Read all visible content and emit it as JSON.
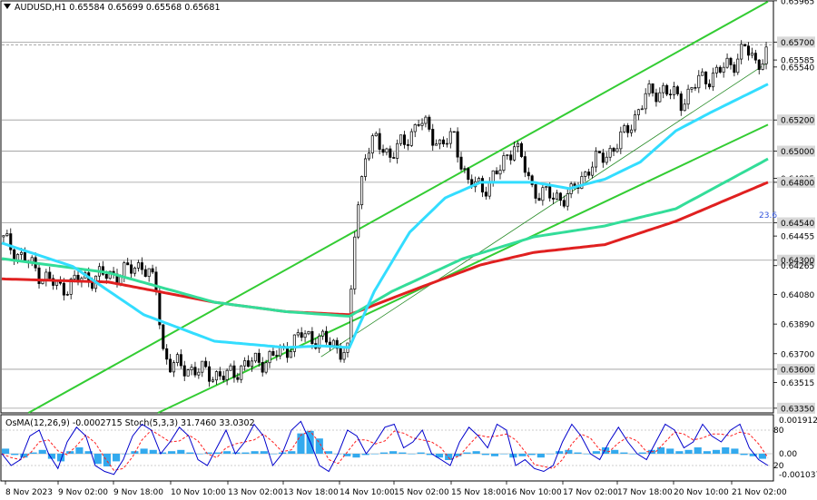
{
  "header": {
    "symbol_title": "AUDUSD,H1  0.65584 0.65699 0.65568 0.65681",
    "current_price": "0.65681"
  },
  "colors": {
    "background": "#ffffff",
    "candle": "#000000",
    "ema_fast": "#33ddff",
    "ema_mid": "#33dd99",
    "ema_slow": "#e02020",
    "channel": "#33cc33",
    "level_line": "#999999",
    "osma_hist": "#33aaee",
    "stoch_main": "#0000cc",
    "stoch_signal": "#ff2020",
    "fib_label": "#3355dd"
  },
  "chart_data": {
    "type": "candlestick",
    "symbol": "AUDUSD",
    "timeframe": "H1",
    "ohlc_last": {
      "open": 0.65584,
      "high": 0.65699,
      "low": 0.65568,
      "close": 0.65681
    },
    "ylim": [
      0.6332,
      0.6597
    ],
    "y_ticks": [
      "0.65965",
      "0.65700",
      "0.65585",
      "0.65540",
      "0.65200",
      "0.65000",
      "0.64825",
      "0.64800",
      "0.64540",
      "0.64455",
      "0.64300",
      "0.64265",
      "0.64080",
      "0.63890",
      "0.63700",
      "0.63600",
      "0.63515",
      "0.63350"
    ],
    "highlighted_levels": [
      "0.65700",
      "0.65200",
      "0.65000",
      "0.64800",
      "0.64540",
      "0.64300",
      "0.63600",
      "0.63350"
    ],
    "x_tick_labels": [
      "8 Nov 2023",
      "9 Nov 02:00",
      "9 Nov 18:00",
      "10 Nov 10:00",
      "13 Nov 02:00",
      "13 Nov 18:00",
      "14 Nov 10:00",
      "15 Nov 02:00",
      "15 Nov 18:00",
      "16 Nov 10:00",
      "17 Nov 02:00",
      "17 Nov 18:00",
      "20 Nov 10:00",
      "21 Nov 02:00"
    ],
    "fib_label": "23.6",
    "close_path": [
      [
        0,
        0.6445
      ],
      [
        12,
        0.6432
      ],
      [
        24,
        0.642
      ],
      [
        34,
        0.6412
      ],
      [
        46,
        0.6418
      ],
      [
        58,
        0.642
      ],
      [
        70,
        0.6422
      ],
      [
        80,
        0.6428
      ],
      [
        88,
        0.6412
      ],
      [
        92,
        0.6372
      ],
      [
        96,
        0.6363
      ],
      [
        108,
        0.636
      ],
      [
        120,
        0.6357
      ],
      [
        128,
        0.6355
      ],
      [
        138,
        0.6363
      ],
      [
        150,
        0.6366
      ],
      [
        160,
        0.6372
      ],
      [
        170,
        0.6382
      ],
      [
        178,
        0.638
      ],
      [
        188,
        0.6376
      ],
      [
        196,
        0.637
      ],
      [
        200,
        0.6448
      ],
      [
        206,
        0.65
      ],
      [
        212,
        0.6506
      ],
      [
        220,
        0.6498
      ],
      [
        228,
        0.6505
      ],
      [
        236,
        0.652
      ],
      [
        242,
        0.6512
      ],
      [
        248,
        0.6505
      ],
      [
        256,
        0.6508
      ],
      [
        264,
        0.648
      ],
      [
        272,
        0.6476
      ],
      [
        282,
        0.6488
      ],
      [
        290,
        0.6506
      ],
      [
        300,
        0.6476
      ],
      [
        312,
        0.647
      ],
      [
        322,
        0.6472
      ],
      [
        332,
        0.649
      ],
      [
        342,
        0.6498
      ],
      [
        352,
        0.651
      ],
      [
        364,
        0.6535
      ],
      [
        374,
        0.654
      ],
      [
        384,
        0.6532
      ],
      [
        394,
        0.6545
      ],
      [
        404,
        0.655
      ],
      [
        414,
        0.6558
      ],
      [
        420,
        0.6566
      ],
      [
        426,
        0.6557
      ],
      [
        432,
        0.6562
      ]
    ],
    "ema_fast_path": [
      [
        0,
        0.6441
      ],
      [
        40,
        0.6426
      ],
      [
        80,
        0.6395
      ],
      [
        120,
        0.6378
      ],
      [
        160,
        0.6374
      ],
      [
        180,
        0.6375
      ],
      [
        196,
        0.6374
      ],
      [
        210,
        0.641
      ],
      [
        230,
        0.6448
      ],
      [
        250,
        0.647
      ],
      [
        270,
        0.648
      ],
      [
        300,
        0.648
      ],
      [
        320,
        0.6476
      ],
      [
        340,
        0.6482
      ],
      [
        360,
        0.6493
      ],
      [
        380,
        0.6513
      ],
      [
        400,
        0.6525
      ],
      [
        432,
        0.6543
      ]
    ],
    "ema_mid_path": [
      [
        0,
        0.6431
      ],
      [
        60,
        0.6422
      ],
      [
        120,
        0.6403
      ],
      [
        160,
        0.6397
      ],
      [
        196,
        0.6394
      ],
      [
        220,
        0.641
      ],
      [
        260,
        0.6431
      ],
      [
        300,
        0.6445
      ],
      [
        340,
        0.6452
      ],
      [
        380,
        0.6463
      ],
      [
        432,
        0.6495
      ]
    ],
    "ema_slow_path": [
      [
        0,
        0.6418
      ],
      [
        60,
        0.6416
      ],
      [
        120,
        0.6403
      ],
      [
        160,
        0.6397
      ],
      [
        196,
        0.6395
      ],
      [
        230,
        0.641
      ],
      [
        270,
        0.6427
      ],
      [
        300,
        0.6435
      ],
      [
        340,
        0.644
      ],
      [
        380,
        0.6455
      ],
      [
        432,
        0.648
      ]
    ],
    "channel_lines": [
      {
        "name": "upper",
        "from": [
          15,
          0.6332
        ],
        "to": [
          432,
          0.6596
        ]
      },
      {
        "name": "middle",
        "from": [
          180,
          0.6368
        ],
        "to": [
          432,
          0.6557
        ]
      },
      {
        "name": "lower",
        "from": [
          88,
          0.6332
        ],
        "to": [
          432,
          0.6517
        ]
      }
    ],
    "indicators": {
      "title": "OsMA(12,26,9) -0.0002715  Stoch(5,3,3) 31.7460 33.0302",
      "osma_ticks": [
        "0.0019127",
        "0.00",
        "-0.001037"
      ],
      "stoch_ticks": [
        "80",
        "20"
      ],
      "stoch_main_values": [
        40,
        20,
        30,
        70,
        80,
        40,
        15,
        60,
        85,
        70,
        20,
        10,
        5,
        30,
        70,
        90,
        80,
        40,
        60,
        85,
        70,
        30,
        20,
        50,
        80,
        40,
        60,
        90,
        70,
        20,
        40,
        80,
        95,
        60,
        20,
        10,
        40,
        80,
        70,
        40,
        60,
        85,
        90,
        50,
        60,
        80,
        40,
        30,
        20,
        60,
        85,
        70,
        50,
        90,
        80,
        20,
        30,
        15,
        10,
        20,
        60,
        90,
        70,
        40,
        30,
        60,
        85,
        60,
        40,
        30,
        60,
        90,
        80,
        50,
        60,
        90,
        70,
        60,
        80,
        90,
        50,
        30,
        20
      ],
      "osma_values": [
        0.4,
        -0.1,
        -0.3,
        0.1,
        0.3,
        -0.4,
        -0.6,
        0.2,
        0.5,
        0.2,
        -0.8,
        -1.0,
        -0.6,
        0.0,
        0.2,
        0.4,
        0.3,
        0.1,
        0.2,
        0.3,
        0.1,
        0.0,
        0.1,
        0.1,
        0.2,
        0.1,
        0.1,
        0.2,
        0.2,
        0.0,
        0.1,
        0.2,
        1.6,
        1.8,
        1.2,
        0.2,
        0.0,
        -0.2,
        -0.3,
        -0.1,
        0.0,
        0.1,
        0.2,
        0.1,
        0.0,
        0.1,
        -0.1,
        -0.3,
        -0.5,
        -0.2,
        0.1,
        0.2,
        -0.1,
        -0.2,
        0.0,
        -0.3,
        -0.2,
        -0.1,
        -0.3,
        0.0,
        0.2,
        0.3,
        0.1,
        0.0,
        0.2,
        0.5,
        0.3,
        0.1,
        0.0,
        0.1,
        0.3,
        0.5,
        0.4,
        0.2,
        0.3,
        0.5,
        0.2,
        0.3,
        0.5,
        0.4,
        -0.1,
        -0.2,
        -0.4
      ]
    }
  }
}
